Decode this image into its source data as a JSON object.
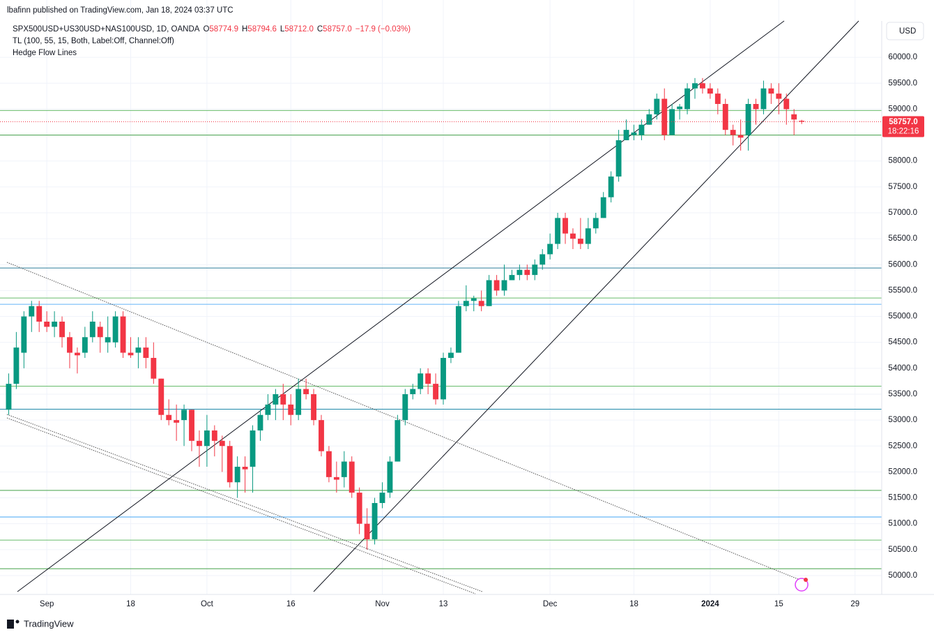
{
  "header": {
    "publisher": "lbafinn published on TradingView.com, Jan 18, 2024 03:37 UTC",
    "symbol": "SPX500USD+US30USD+NAS100USD, 1D, OANDA",
    "o_label": "O",
    "o_value": "58774.9",
    "h_label": "H",
    "h_value": "58794.6",
    "l_label": "L",
    "l_value": "58712.0",
    "c_label": "C",
    "c_value": "58757.0",
    "change": "−17.9 (−0.03%)",
    "indicator_1": "TL (100, 55, 15, Both, Label:Off, Channel:Off)",
    "indicator_2": "Hedge Flow Lines",
    "currency": "USD",
    "last_price": "58757.0",
    "countdown": "18:22:16",
    "footer": "TradingView"
  },
  "chart_data": {
    "type": "candlestick",
    "up_color": "#089981",
    "down_color": "#f23645",
    "grid": true,
    "categories": [
      null,
      null,
      null,
      null,
      null,
      "Sep",
      null,
      null,
      null,
      null,
      null,
      null,
      null,
      null,
      null,
      null,
      "18",
      null,
      null,
      null,
      null,
      null,
      null,
      null,
      null,
      null,
      "Oct",
      null,
      null,
      null,
      null,
      null,
      null,
      null,
      null,
      null,
      null,
      "16",
      null,
      null,
      null,
      null,
      null,
      null,
      null,
      null,
      null,
      null,
      null,
      "Nov",
      null,
      null,
      null,
      null,
      null,
      null,
      null,
      "13",
      null,
      null,
      null,
      null,
      null,
      null,
      null,
      null,
      null,
      null,
      null,
      null,
      null,
      "Dec",
      null,
      null,
      null,
      null,
      null,
      null,
      null,
      null,
      null,
      null,
      "18",
      null,
      null,
      null,
      null,
      null,
      null,
      null,
      null,
      null,
      "2024",
      null,
      null,
      null,
      null,
      null,
      null,
      null,
      null,
      "15",
      null,
      null,
      null,
      null,
      null,
      null,
      null,
      null,
      null,
      "29",
      null,
      null,
      null
    ],
    "open": [
      53200,
      53700,
      54300,
      55000,
      55200,
      54900,
      54800,
      54900,
      54600,
      54300,
      54300,
      54600,
      54800,
      54500,
      54500,
      55000,
      54300,
      54300,
      54400,
      54200,
      53800,
      53100,
      53000,
      53000,
      53200,
      52600,
      52500,
      52800,
      52600,
      52500,
      51800,
      52100,
      52100,
      52800,
      53100,
      53300,
      53500,
      53300,
      53100,
      53600,
      53500,
      53000,
      52400,
      51900,
      51900,
      52200,
      51600,
      51000,
      50700,
      51400,
      51600,
      52200,
      53000,
      53500,
      53600,
      53900,
      53700,
      53400,
      54200,
      54300,
      55200,
      55300,
      55300,
      55200,
      55700,
      55500,
      55700,
      55800,
      55900,
      55800,
      56000,
      56200,
      56400,
      56900,
      56600,
      56500,
      56400,
      56700,
      56900,
      57300,
      57700,
      58400,
      58500,
      58500,
      58700,
      58900,
      59200,
      58500,
      59000,
      59000,
      59400,
      59500,
      59400,
      59300,
      59100,
      58600,
      58500,
      58500,
      59100,
      59000,
      59400,
      59300,
      59200,
      58900,
      58774.9,
      null,
      null,
      null,
      null,
      null,
      null,
      null,
      null,
      null,
      null
    ],
    "high": [
      53900,
      54700,
      55100,
      55300,
      55300,
      55100,
      55100,
      55000,
      54700,
      54400,
      54800,
      55100,
      54900,
      55000,
      55100,
      55100,
      54600,
      54600,
      54600,
      54500,
      53800,
      53400,
      53300,
      53300,
      53200,
      52800,
      53100,
      52900,
      52700,
      52600,
      52300,
      52300,
      52900,
      53200,
      53500,
      53600,
      53700,
      53500,
      53800,
      53800,
      53600,
      53100,
      52500,
      52200,
      52400,
      52300,
      51700,
      51300,
      51500,
      51800,
      52300,
      53100,
      53600,
      53700,
      54000,
      54000,
      53900,
      54300,
      54400,
      55300,
      55600,
      55400,
      55500,
      55800,
      55800,
      56000,
      55900,
      56000,
      56000,
      56100,
      56300,
      56600,
      57000,
      57000,
      56700,
      56900,
      56900,
      57000,
      57400,
      57800,
      58600,
      58800,
      58700,
      58800,
      59000,
      59300,
      59400,
      59100,
      59100,
      59500,
      59600,
      59600,
      59500,
      59400,
      59200,
      58700,
      58800,
      59200,
      59200,
      59550,
      59500,
      59500,
      59300,
      59000,
      58794.6,
      null,
      null,
      null,
      null,
      null,
      null,
      null,
      null,
      null,
      null
    ],
    "low": [
      53100,
      53600,
      54000,
      54700,
      54700,
      54700,
      54600,
      54400,
      54000,
      53900,
      54200,
      54500,
      54300,
      54300,
      54400,
      54200,
      54200,
      54000,
      54000,
      53700,
      53000,
      52900,
      52600,
      52500,
      52400,
      52100,
      52100,
      52300,
      52000,
      51700,
      51500,
      51600,
      51600,
      52600,
      53000,
      53000,
      53000,
      52900,
      53000,
      53400,
      52900,
      52300,
      51800,
      51600,
      51700,
      51500,
      50800,
      50500,
      50600,
      51300,
      51500,
      52200,
      52900,
      53400,
      53500,
      53500,
      53300,
      53300,
      54100,
      54300,
      55100,
      55100,
      55100,
      55200,
      55400,
      55400,
      55700,
      55700,
      55700,
      55700,
      55900,
      56100,
      56300,
      56400,
      56300,
      56300,
      56300,
      56600,
      56900,
      57200,
      57600,
      58400,
      58400,
      58400,
      58700,
      58800,
      58400,
      58500,
      58800,
      58900,
      59200,
      59300,
      59200,
      58900,
      58500,
      58300,
      58200,
      58200,
      58700,
      58900,
      59100,
      58900,
      58700,
      58500,
      58712,
      null,
      null,
      null,
      null,
      null,
      null,
      null,
      null,
      null,
      null
    ],
    "close": [
      53700,
      54400,
      55000,
      55200,
      54900,
      54800,
      54900,
      54600,
      54300,
      54250,
      54600,
      54900,
      54600,
      54600,
      55000,
      54300,
      54250,
      54400,
      54200,
      53800,
      53100,
      53000,
      52950,
      53200,
      52600,
      52500,
      52800,
      52600,
      52500,
      51800,
      52100,
      52050,
      52800,
      53100,
      53300,
      53500,
      53300,
      53100,
      53600,
      53500,
      53000,
      52400,
      51900,
      51850,
      52200,
      51600,
      51000,
      50700,
      51400,
      51600,
      52200,
      53000,
      53500,
      53600,
      53900,
      53700,
      53400,
      54200,
      54300,
      55200,
      55300,
      55350,
      55200,
      55700,
      55500,
      55700,
      55800,
      55900,
      55800,
      56000,
      56200,
      56400,
      56900,
      56600,
      56500,
      56400,
      56700,
      56900,
      57300,
      57700,
      58400,
      58600,
      58550,
      58700,
      58900,
      59200,
      58500,
      59000,
      59050,
      59400,
      59500,
      59400,
      59300,
      59100,
      58600,
      58500,
      58450,
      59100,
      59000,
      59400,
      59300,
      59200,
      59000,
      58800,
      58757,
      null,
      null,
      null,
      null,
      null,
      null,
      null,
      null,
      null,
      null
    ],
    "levels": [
      {
        "value": 58974,
        "color": "#66bb6a"
      },
      {
        "value": 58500,
        "color": "#43a047"
      },
      {
        "value": 55935,
        "color": "#2e7d9a"
      },
      {
        "value": 55356,
        "color": "#66bb6a"
      },
      {
        "value": 55235,
        "color": "#64b5f6"
      },
      {
        "value": 53655,
        "color": "#66bb6a"
      },
      {
        "value": 53210,
        "color": "#1e88a8"
      },
      {
        "value": 51643,
        "color": "#43a047"
      },
      {
        "value": 51131,
        "color": "#42a5f5"
      },
      {
        "value": 50685,
        "color": "#66bb6a"
      },
      {
        "value": 50132,
        "color": "#43a047"
      }
    ],
    "ylim": [
      49636,
      60702
    ],
    "yticks": [
      {
        "value": 50000,
        "label": "50000.0"
      },
      {
        "value": 50500,
        "label": "50500.0"
      },
      {
        "value": 51000,
        "label": "51000.0"
      },
      {
        "value": 51500,
        "label": "51500.0"
      },
      {
        "value": 52000,
        "label": "52000.0"
      },
      {
        "value": 52500,
        "label": "52500.0"
      },
      {
        "value": 53000,
        "label": "53000.0"
      },
      {
        "value": 53500,
        "label": "53500.0"
      },
      {
        "value": 54000,
        "label": "54000.0"
      },
      {
        "value": 54500,
        "label": "54500.0"
      },
      {
        "value": 55000,
        "label": "55000.0"
      },
      {
        "value": 55500,
        "label": "55500.0"
      },
      {
        "value": 56000,
        "label": "56000.0"
      },
      {
        "value": 56500,
        "label": "56500.0"
      },
      {
        "value": 57000,
        "label": "57000.0"
      },
      {
        "value": 57500,
        "label": "57500.0"
      },
      {
        "value": 58000,
        "label": "58000.0"
      },
      {
        "value": 58500,
        "label": "58500.0"
      },
      {
        "value": 59000,
        "label": "59000.0"
      },
      {
        "value": 59500,
        "label": "59500.0"
      },
      {
        "value": 60000,
        "label": "60000.0"
      }
    ]
  }
}
